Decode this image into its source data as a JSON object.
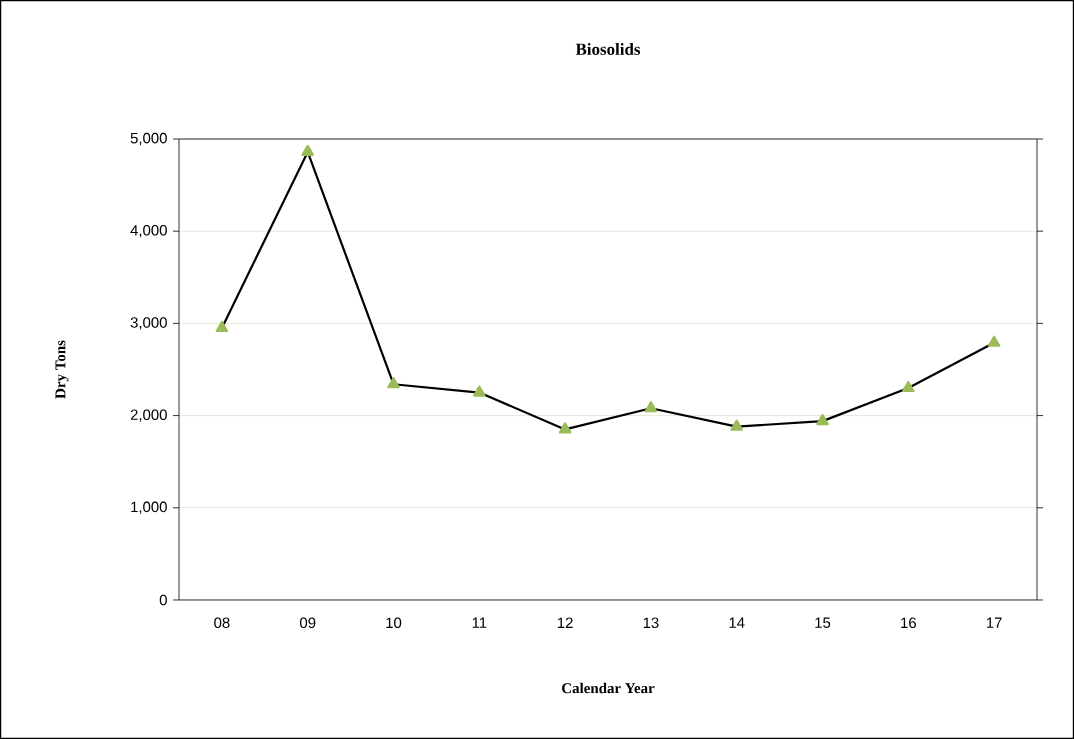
{
  "chart_data": {
    "type": "line",
    "title": "Biosolids",
    "xlabel": "Calendar  Year",
    "ylabel": "Dry Tons",
    "categories": [
      "08",
      "09",
      "10",
      "11",
      "12",
      "13",
      "14",
      "15",
      "16",
      "17"
    ],
    "series": [
      {
        "color": "#000000",
        "values": [
          2950,
          4860,
          2340,
          2250,
          1850,
          2080,
          1880,
          1940,
          2300,
          2790
        ]
      }
    ],
    "marker": "triangle",
    "line_style": "solid",
    "grid": "y",
    "ylim": [
      0,
      5000
    ],
    "yticks": [
      0,
      {
        "value": 1000,
        "label": "1,000"
      },
      {
        "value": 2000,
        "label": "2,000"
      },
      {
        "value": 3000,
        "label": "3,000"
      },
      {
        "value": 4000,
        "label": "4,000"
      },
      {
        "value": 5000,
        "label": "5,000"
      }
    ]
  }
}
